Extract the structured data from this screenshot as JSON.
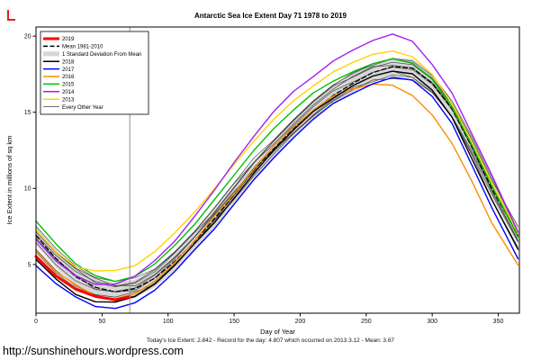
{
  "page": {
    "caption": "Today's Ice Extent: 2.842  - Record for the day: 4.807 which occurred on 2013.3.12  - Mean: 3.67",
    "footer_url": "http://sunshinehours.wordpress.com"
  },
  "chart_data": {
    "type": "line",
    "title": "Antarctic Sea Ice Extent Day 71 1978 to 2019",
    "xlabel": "Day of Year",
    "ylabel": "Ice Extent in millions of sq km",
    "xlim": [
      0,
      366
    ],
    "ylim": [
      1.8,
      20.6
    ],
    "xticks": [
      0,
      50,
      100,
      150,
      200,
      250,
      300,
      350
    ],
    "yticks": [
      5,
      10,
      15,
      20
    ],
    "grid": false,
    "legend_position": "top-left",
    "marker_day": 71,
    "x": [
      0,
      15,
      30,
      45,
      60,
      75,
      90,
      105,
      120,
      135,
      150,
      165,
      180,
      195,
      210,
      225,
      240,
      255,
      270,
      285,
      300,
      315,
      330,
      345,
      365
    ],
    "mean": {
      "name": "Mean 1981-2010",
      "values": [
        6.9,
        5.4,
        4.2,
        3.5,
        3.2,
        3.4,
        4.1,
        5.2,
        6.5,
        8.0,
        9.6,
        11.2,
        12.6,
        13.9,
        15.1,
        16.1,
        16.9,
        17.6,
        18.0,
        17.9,
        16.9,
        15.2,
        12.7,
        10.0,
        6.9
      ]
    },
    "sd": 0.6,
    "series": [
      {
        "name": "2016",
        "color": "#FF8C00",
        "width": 1.4,
        "values": [
          5.9,
          4.5,
          3.6,
          3.0,
          2.8,
          3.1,
          3.9,
          5.1,
          6.5,
          8.1,
          9.7,
          11.3,
          12.8,
          14.0,
          15.1,
          16.0,
          16.6,
          16.9,
          16.8,
          16.1,
          14.8,
          12.9,
          10.4,
          7.8,
          5.0
        ]
      },
      {
        "name": "2017",
        "color": "#0000FF",
        "width": 1.4,
        "values": [
          4.9,
          3.7,
          2.8,
          2.3,
          2.15,
          2.5,
          3.3,
          4.5,
          5.9,
          7.4,
          9.0,
          10.6,
          12.0,
          13.3,
          14.5,
          15.5,
          16.3,
          16.9,
          17.3,
          17.1,
          16.0,
          14.2,
          11.6,
          8.8,
          5.4
        ]
      },
      {
        "name": "2018",
        "color": "#000000",
        "width": 1.4,
        "values": [
          5.3,
          4.0,
          3.1,
          2.6,
          2.55,
          2.9,
          3.7,
          4.9,
          6.3,
          7.8,
          9.4,
          11.0,
          12.5,
          13.8,
          15.0,
          16.0,
          16.8,
          17.4,
          17.7,
          17.5,
          16.4,
          14.6,
          12.0,
          9.3,
          6.0
        ]
      },
      {
        "name": "2015",
        "color": "#00C000",
        "width": 1.4,
        "values": [
          7.8,
          6.3,
          5.1,
          4.3,
          3.9,
          4.2,
          5.0,
          6.2,
          7.7,
          9.3,
          10.9,
          12.5,
          13.9,
          15.1,
          16.2,
          17.1,
          17.7,
          18.2,
          18.5,
          18.2,
          17.1,
          15.4,
          12.9,
          10.2,
          6.8
        ]
      },
      {
        "name": "2013",
        "color": "#FFD300",
        "width": 1.4,
        "values": [
          7.2,
          5.9,
          4.9,
          4.6,
          4.6,
          4.9,
          5.8,
          7.0,
          8.5,
          10.0,
          11.6,
          13.1,
          14.5,
          15.7,
          16.8,
          17.7,
          18.3,
          18.8,
          19.0,
          18.6,
          17.4,
          15.6,
          13.1,
          10.4,
          7.0
        ]
      },
      {
        "name": "2014",
        "color": "#A020F0",
        "width": 1.4,
        "values": [
          6.6,
          5.3,
          4.3,
          3.7,
          3.7,
          4.2,
          5.2,
          6.6,
          8.2,
          9.9,
          11.7,
          13.4,
          15.0,
          16.3,
          17.4,
          18.4,
          19.1,
          19.7,
          20.1,
          19.6,
          18.2,
          16.3,
          13.6,
          10.9,
          7.1
        ]
      },
      {
        "name": "2019",
        "color": "#FF0000",
        "width": 3,
        "x": [
          0,
          15,
          30,
          45,
          60,
          71
        ],
        "values": [
          5.6,
          4.3,
          3.4,
          2.9,
          2.65,
          2.84
        ]
      }
    ],
    "other_years": [
      [
        6.1,
        4.7,
        3.6,
        3.0,
        2.8,
        3.1,
        3.8,
        5.0,
        6.4,
        7.9,
        9.5,
        11.1,
        12.5,
        13.7,
        14.9,
        15.9,
        16.7,
        17.3,
        17.6,
        17.4,
        16.4,
        14.7,
        12.3,
        9.6,
        6.4
      ],
      [
        7.6,
        6.1,
        4.9,
        4.1,
        3.8,
        4.0,
        4.8,
        5.9,
        7.2,
        8.7,
        10.3,
        11.9,
        13.3,
        14.6,
        15.8,
        16.8,
        17.5,
        18.1,
        18.4,
        18.3,
        17.3,
        15.6,
        13.2,
        10.5,
        7.4
      ],
      [
        6.5,
        5.0,
        3.9,
        3.3,
        3.1,
        3.4,
        4.2,
        5.4,
        6.8,
        8.4,
        10.0,
        11.6,
        13.0,
        14.3,
        15.5,
        16.5,
        17.3,
        17.9,
        18.2,
        18.0,
        17.0,
        15.3,
        12.8,
        10.1,
        6.9
      ],
      [
        7.0,
        5.6,
        4.5,
        3.8,
        3.5,
        3.7,
        4.4,
        5.5,
        6.8,
        8.2,
        9.7,
        11.2,
        12.5,
        13.7,
        14.8,
        15.7,
        16.4,
        17.0,
        17.3,
        17.2,
        16.3,
        14.7,
        12.4,
        9.8,
        6.7
      ],
      [
        7.3,
        5.8,
        4.7,
        4.0,
        3.7,
        3.9,
        4.7,
        5.8,
        7.1,
        8.6,
        10.2,
        11.8,
        13.2,
        14.5,
        15.7,
        16.7,
        17.5,
        18.2,
        18.6,
        18.4,
        17.4,
        15.7,
        13.3,
        10.6,
        7.2
      ],
      [
        5.8,
        4.4,
        3.4,
        2.9,
        2.7,
        3.0,
        3.8,
        5.0,
        6.3,
        7.8,
        9.4,
        10.9,
        12.3,
        13.6,
        14.7,
        15.7,
        16.5,
        17.1,
        17.5,
        17.3,
        16.3,
        14.6,
        12.1,
        9.4,
        6.2
      ],
      [
        6.7,
        5.3,
        4.2,
        3.5,
        3.3,
        3.5,
        4.3,
        5.4,
        6.7,
        8.2,
        9.8,
        11.4,
        12.8,
        14.1,
        15.3,
        16.3,
        17.1,
        17.7,
        18.0,
        17.8,
        16.8,
        15.1,
        12.6,
        9.9,
        6.6
      ],
      [
        7.1,
        5.7,
        4.6,
        3.9,
        3.6,
        3.8,
        4.5,
        5.7,
        7.0,
        8.5,
        10.1,
        11.7,
        13.1,
        14.4,
        15.6,
        16.6,
        17.4,
        18.0,
        18.3,
        18.1,
        17.1,
        15.4,
        12.9,
        10.2,
        7.0
      ]
    ],
    "colors": {
      "band": "#d7d7d7",
      "other": "#3a3a3a",
      "marker_line": "#909090",
      "axis": "#000000"
    },
    "legend": [
      {
        "label": "2019",
        "color": "#FF0000",
        "lw": 3
      },
      {
        "label": "Mean 1981-2010",
        "color": "#000000",
        "lw": 1.5,
        "dash": "5,2.5"
      },
      {
        "label": "1 Standard Deviation From Mean",
        "color": "#d7d7d7",
        "band": true
      },
      {
        "label": "2018",
        "color": "#000000",
        "lw": 1.5
      },
      {
        "label": "2017",
        "color": "#0000FF",
        "lw": 1.5
      },
      {
        "label": "2016",
        "color": "#FF8C00",
        "lw": 1.5
      },
      {
        "label": "2015",
        "color": "#00C000",
        "lw": 1.5
      },
      {
        "label": "2014",
        "color": "#A020F0",
        "lw": 1.5
      },
      {
        "label": "2013",
        "color": "#FFD300",
        "lw": 1.5
      },
      {
        "label": "Every Other Year",
        "color": "#404040",
        "lw": 0.8
      }
    ]
  }
}
